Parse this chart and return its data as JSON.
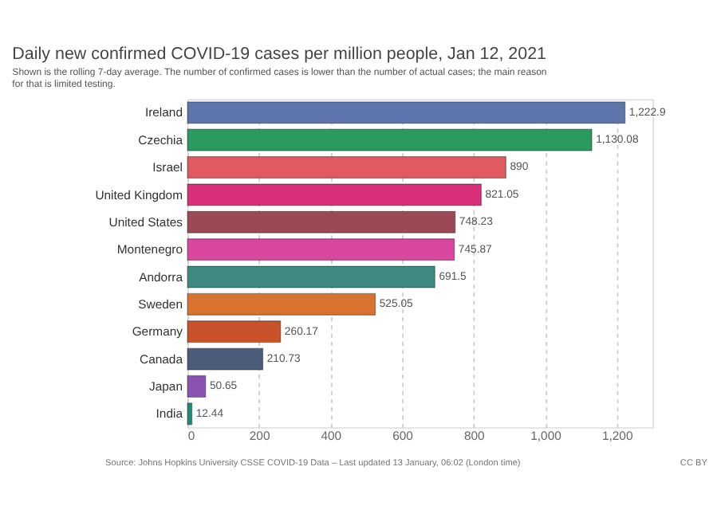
{
  "chart_data": {
    "type": "bar",
    "orientation": "horizontal",
    "title": "Daily new confirmed COVID-19 cases per million people, Jan 12, 2021",
    "subtitle": "Shown is the rolling 7-day average. The number of confirmed cases is lower than the number of actual cases; the main reason for that is limited testing.",
    "categories": [
      "Ireland",
      "Czechia",
      "Israel",
      "United Kingdom",
      "United States",
      "Montenegro",
      "Andorra",
      "Sweden",
      "Germany",
      "Canada",
      "Japan",
      "India"
    ],
    "values": [
      1222.9,
      1130.08,
      890,
      821.05,
      748.23,
      745.87,
      691.5,
      525.05,
      260.17,
      210.73,
      50.65,
      12.44
    ],
    "value_labels": [
      "1,222.9",
      "1,130.08",
      "890",
      "821.05",
      "748.23",
      "745.87",
      "691.5",
      "525.05",
      "260.17",
      "210.73",
      "50.65",
      "12.44"
    ],
    "colors": [
      "#5d75aa",
      "#2b9a5e",
      "#e05a62",
      "#d8317a",
      "#9b4a55",
      "#d9479e",
      "#3f8a80",
      "#d8732f",
      "#c9522b",
      "#4b5d7a",
      "#8c52b3",
      "#1b8c7c"
    ],
    "xlim": [
      0,
      1300
    ],
    "xticks": [
      0,
      200,
      400,
      600,
      800,
      {
        "value": 1000,
        "label": "1,000"
      },
      {
        "value": 1200,
        "label": "1,200"
      }
    ],
    "grid": "x",
    "annotations": [
      "Source: Johns Hopkins University CSSE COVID-19 Data – Last updated 13 January, 06:02 (London time)",
      "CC BY"
    ]
  }
}
